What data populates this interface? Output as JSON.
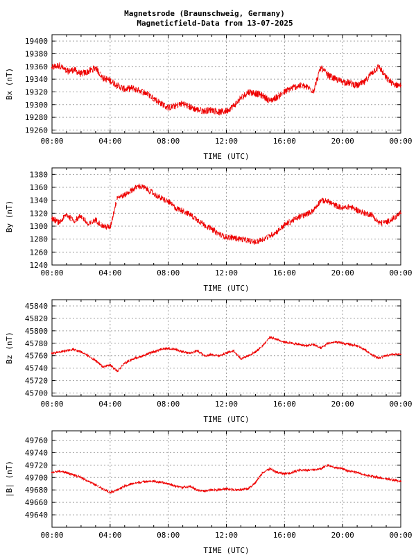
{
  "title_line1": "Magnetsrode (Braunschweig, Germany)",
  "title_line2": "Magneticfield-Data from 13-07-2025",
  "colors": {
    "series": "#ee0000",
    "grid": "#a0a0a0",
    "axis": "#000000"
  },
  "chart_data": [
    {
      "type": "scatter",
      "ylabel": "Bx (nT)",
      "xlabel": "TIME (UTC)",
      "xlim": [
        0,
        24
      ],
      "xticks": [
        "00:00",
        "04:00",
        "08:00",
        "12:00",
        "16:00",
        "20:00",
        "00:00"
      ],
      "ylim": [
        19255,
        19410
      ],
      "yticks": [
        19260,
        19280,
        19300,
        19320,
        19340,
        19360,
        19380,
        19400
      ],
      "grid": true,
      "series": [
        {
          "x": [
            0.0,
            0.5,
            1.0,
            1.5,
            2.0,
            2.5,
            3.0,
            3.5,
            4.0,
            4.5,
            5.0,
            5.5,
            6.0,
            6.5,
            7.0,
            7.5,
            8.0,
            8.5,
            9.0,
            9.5,
            10.0,
            10.5,
            11.0,
            11.5,
            12.0,
            12.5,
            13.0,
            13.5,
            14.0,
            14.5,
            15.0,
            15.5,
            16.0,
            16.5,
            17.0,
            17.5,
            18.0,
            18.5,
            19.0,
            19.5,
            20.0,
            20.5,
            21.0,
            21.5,
            22.0,
            22.5,
            23.0,
            23.5,
            24.0
          ],
          "y": [
            19358,
            19362,
            19352,
            19355,
            19348,
            19352,
            19358,
            19342,
            19338,
            19330,
            19324,
            19326,
            19322,
            19318,
            19310,
            19302,
            19295,
            19298,
            19302,
            19296,
            19292,
            19290,
            19292,
            19288,
            19290,
            19298,
            19310,
            19320,
            19318,
            19314,
            19306,
            19312,
            19320,
            19326,
            19330,
            19328,
            19322,
            19358,
            19346,
            19340,
            19336,
            19334,
            19330,
            19335,
            19350,
            19360,
            19342,
            19332,
            19330
          ]
        }
      ]
    },
    {
      "type": "scatter",
      "ylabel": "By (nT)",
      "xlabel": "TIME (UTC)",
      "xlim": [
        0,
        24
      ],
      "xticks": [
        "00:00",
        "04:00",
        "08:00",
        "12:00",
        "16:00",
        "20:00",
        "00:00"
      ],
      "ylim": [
        1240,
        1390
      ],
      "yticks": [
        1240,
        1260,
        1280,
        1300,
        1320,
        1340,
        1360,
        1380
      ],
      "grid": true,
      "series": [
        {
          "x": [
            0.0,
            0.5,
            1.0,
            1.5,
            2.0,
            2.5,
            3.0,
            3.5,
            4.0,
            4.5,
            5.0,
            5.5,
            6.0,
            6.5,
            7.0,
            7.5,
            8.0,
            8.5,
            9.0,
            9.5,
            10.0,
            10.5,
            11.0,
            11.5,
            12.0,
            12.5,
            13.0,
            13.5,
            14.0,
            14.5,
            15.0,
            15.5,
            16.0,
            16.5,
            17.0,
            17.5,
            18.0,
            18.5,
            19.0,
            19.5,
            20.0,
            20.5,
            21.0,
            21.5,
            22.0,
            22.5,
            23.0,
            23.5,
            24.0
          ],
          "y": [
            1312,
            1305,
            1318,
            1308,
            1316,
            1302,
            1310,
            1300,
            1298,
            1345,
            1348,
            1356,
            1362,
            1358,
            1350,
            1343,
            1338,
            1328,
            1324,
            1318,
            1310,
            1302,
            1295,
            1288,
            1283,
            1282,
            1280,
            1278,
            1275,
            1280,
            1285,
            1292,
            1302,
            1308,
            1314,
            1318,
            1325,
            1340,
            1338,
            1332,
            1328,
            1330,
            1325,
            1320,
            1318,
            1305,
            1306,
            1312,
            1320
          ]
        }
      ]
    },
    {
      "type": "scatter",
      "ylabel": "Bz (nT)",
      "xlabel": "TIME (UTC)",
      "xlim": [
        0,
        24
      ],
      "xticks": [
        "00:00",
        "04:00",
        "08:00",
        "12:00",
        "16:00",
        "20:00",
        "00:00"
      ],
      "ylim": [
        45695,
        45850
      ],
      "yticks": [
        45700,
        45720,
        45740,
        45760,
        45780,
        45800,
        45820,
        45840
      ],
      "grid": true,
      "series": [
        {
          "x": [
            0.0,
            0.5,
            1.0,
            1.5,
            2.0,
            2.5,
            3.0,
            3.5,
            4.0,
            4.5,
            5.0,
            5.5,
            6.0,
            6.5,
            7.0,
            7.5,
            8.0,
            8.5,
            9.0,
            9.5,
            10.0,
            10.5,
            11.0,
            11.5,
            12.0,
            12.5,
            13.0,
            13.5,
            14.0,
            14.5,
            15.0,
            15.5,
            16.0,
            16.5,
            17.0,
            17.5,
            18.0,
            18.5,
            19.0,
            19.5,
            20.0,
            20.5,
            21.0,
            21.5,
            22.0,
            22.5,
            23.0,
            23.5,
            24.0
          ],
          "y": [
            45764,
            45766,
            45768,
            45770,
            45766,
            45760,
            45752,
            45742,
            45745,
            45735,
            45748,
            45754,
            45758,
            45762,
            45766,
            45770,
            45772,
            45770,
            45766,
            45764,
            45768,
            45760,
            45762,
            45760,
            45764,
            45768,
            45755,
            45760,
            45766,
            45776,
            45790,
            45786,
            45782,
            45780,
            45778,
            45776,
            45778,
            45772,
            45780,
            45782,
            45780,
            45778,
            45776,
            45770,
            45762,
            45756,
            45760,
            45762,
            45762
          ]
        }
      ]
    },
    {
      "type": "scatter",
      "ylabel": "|B| (nT)",
      "xlabel": "TIME (UTC)",
      "xlim": [
        0,
        24
      ],
      "xticks": [
        "00:00",
        "04:00",
        "08:00",
        "12:00",
        "16:00",
        "20:00",
        "00:00"
      ],
      "ylim": [
        49620,
        49775
      ],
      "yticks": [
        49640,
        49660,
        49680,
        49700,
        49720,
        49740,
        49760
      ],
      "grid": true,
      "series": [
        {
          "x": [
            0.0,
            0.5,
            1.0,
            1.5,
            2.0,
            2.5,
            3.0,
            3.5,
            4.0,
            4.5,
            5.0,
            5.5,
            6.0,
            6.5,
            7.0,
            7.5,
            8.0,
            8.5,
            9.0,
            9.5,
            10.0,
            10.5,
            11.0,
            11.5,
            12.0,
            12.5,
            13.0,
            13.5,
            14.0,
            14.5,
            15.0,
            15.5,
            16.0,
            16.5,
            17.0,
            17.5,
            18.0,
            18.5,
            19.0,
            19.5,
            20.0,
            20.5,
            21.0,
            21.5,
            22.0,
            22.5,
            23.0,
            23.5,
            24.0
          ],
          "y": [
            49708,
            49710,
            49708,
            49704,
            49700,
            49694,
            49688,
            49682,
            49676,
            49680,
            49686,
            49690,
            49692,
            49694,
            49694,
            49692,
            49690,
            49686,
            49684,
            49686,
            49680,
            49678,
            49680,
            49680,
            49682,
            49680,
            49680,
            49682,
            49692,
            49708,
            49714,
            49708,
            49706,
            49708,
            49712,
            49712,
            49712,
            49714,
            49720,
            49716,
            49714,
            49710,
            49708,
            49704,
            49702,
            49700,
            49698,
            49696,
            49694
          ]
        }
      ]
    }
  ]
}
